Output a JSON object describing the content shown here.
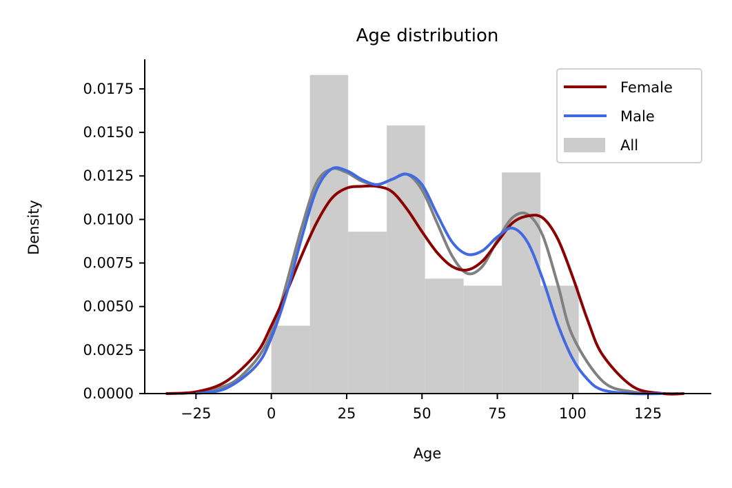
{
  "chart_data": {
    "type": "bar",
    "title": "Age distribution",
    "xlabel": "Age",
    "ylabel": "Density",
    "xlim": [
      -42,
      146
    ],
    "ylim": [
      0,
      0.0192
    ],
    "xticks": [
      -25,
      0,
      25,
      50,
      75,
      100,
      125
    ],
    "xtick_labels": [
      "−25",
      "0",
      "25",
      "50",
      "75",
      "100",
      "125"
    ],
    "yticks": [
      0.0,
      0.0025,
      0.005,
      0.0075,
      0.01,
      0.0125,
      0.015,
      0.0175
    ],
    "ytick_labels": [
      "0.0000",
      "0.0025",
      "0.0050",
      "0.0075",
      "0.0100",
      "0.0125",
      "0.0150",
      "0.0175"
    ],
    "grid": false,
    "legend_position": "top-right",
    "histogram": {
      "name": "All",
      "color": "#cccccc",
      "bin_edges": [
        0,
        12.8,
        25.5,
        38.3,
        51.0,
        63.8,
        76.5,
        89.3,
        102
      ],
      "values": [
        0.0039,
        0.0183,
        0.0093,
        0.0154,
        0.0066,
        0.0062,
        0.0127,
        0.0062
      ]
    },
    "series": [
      {
        "name": "",
        "color": "#808080",
        "x": [
          -30,
          -20,
          -10,
          0,
          10,
          15,
          20,
          25,
          30,
          35,
          40,
          45,
          50,
          55,
          60,
          65,
          70,
          75,
          80,
          85,
          90,
          95,
          100,
          110,
          120,
          130,
          135
        ],
        "y": [
          0.0,
          0.0002,
          0.001,
          0.0035,
          0.0095,
          0.0121,
          0.0129,
          0.0127,
          0.0122,
          0.012,
          0.0123,
          0.0126,
          0.0117,
          0.0098,
          0.0079,
          0.0069,
          0.0073,
          0.0088,
          0.0101,
          0.0103,
          0.0091,
          0.0063,
          0.0033,
          0.0007,
          0.0001,
          0.0,
          0.0
        ]
      },
      {
        "name": "Female",
        "color": "#8b0000",
        "x": [
          -35,
          -25,
          -15,
          -5,
          0,
          5,
          10,
          15,
          20,
          25,
          30,
          35,
          40,
          45,
          50,
          55,
          60,
          65,
          70,
          75,
          80,
          85,
          90,
          95,
          100,
          105,
          110,
          120,
          130,
          137
        ],
        "y": [
          0.0,
          0.0001,
          0.0007,
          0.0023,
          0.0039,
          0.0058,
          0.0079,
          0.0098,
          0.0112,
          0.0118,
          0.0119,
          0.0119,
          0.0116,
          0.0106,
          0.0093,
          0.0081,
          0.0073,
          0.0071,
          0.0076,
          0.0087,
          0.0098,
          0.0102,
          0.0101,
          0.0089,
          0.0067,
          0.0042,
          0.0022,
          0.0004,
          0.0,
          0.0
        ]
      },
      {
        "name": "Male",
        "color": "#4169e1",
        "x": [
          -25,
          -15,
          -5,
          0,
          5,
          10,
          15,
          20,
          25,
          30,
          35,
          40,
          45,
          50,
          55,
          60,
          65,
          70,
          75,
          80,
          85,
          90,
          95,
          100,
          105,
          110,
          120,
          130
        ],
        "y": [
          0.0,
          0.0003,
          0.0016,
          0.0032,
          0.0057,
          0.0089,
          0.0117,
          0.0129,
          0.0128,
          0.0123,
          0.012,
          0.0123,
          0.0126,
          0.012,
          0.0103,
          0.0087,
          0.008,
          0.0082,
          0.009,
          0.0095,
          0.0087,
          0.0066,
          0.004,
          0.002,
          0.0008,
          0.0002,
          0.0,
          0.0
        ]
      }
    ],
    "legend": [
      {
        "label": "Female",
        "kind": "line",
        "color": "#8b0000"
      },
      {
        "label": "Male",
        "kind": "line",
        "color": "#4169e1"
      },
      {
        "label": "All",
        "kind": "patch",
        "color": "#cccccc"
      }
    ]
  }
}
